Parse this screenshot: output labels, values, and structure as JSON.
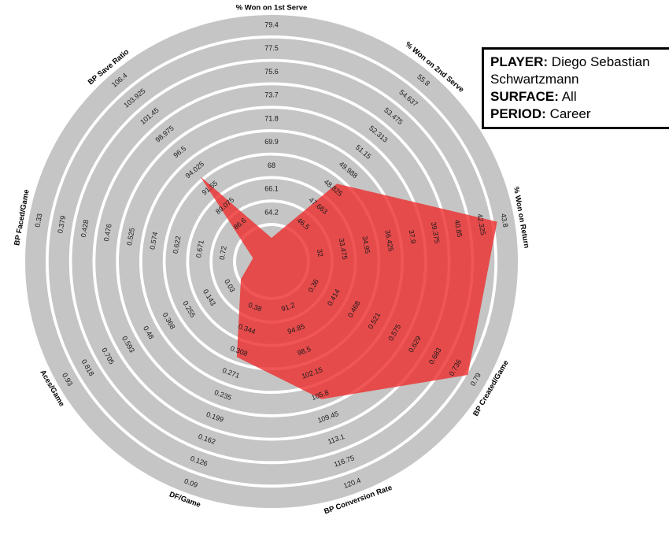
{
  "info_box": {
    "player_label": "PLAYER:",
    "player_value": "Diego Sebastian Schwartzmann",
    "surface_label": "SURFACE:",
    "surface_value": "All",
    "period_label": "PERIOD:",
    "period_value": "Career"
  },
  "chart_data": {
    "type": "radar",
    "title": "",
    "legend_position": "none",
    "grid": "concentric-bands",
    "colors": {
      "band": "#c5c5c5",
      "fill": "#ee2c2c",
      "fill_opacity": 0.8,
      "tick_text": "#1a1a1a",
      "title_text": "#000000"
    },
    "axes": [
      {
        "label": "% Won on 1st Serve",
        "ticks": [
          "64.2",
          "66.1",
          "68",
          "69.9",
          "71.8",
          "73.7",
          "75.6",
          "77.5",
          "79.4"
        ],
        "min": 64.2,
        "max": 79.4,
        "value": 63.5,
        "radius_frac": 0.1
      },
      {
        "label": "% Won on 2nd Serve",
        "ticks": [
          "46.5",
          "47.663",
          "48.825",
          "49.988",
          "51.15",
          "52.313",
          "53.475",
          "54.637",
          "55.8"
        ],
        "min": 46.5,
        "max": 55.8,
        "value": 49.1,
        "radius_frac": 0.43
      },
      {
        "label": "% Won on Return",
        "ticks": [
          "32",
          "33.475",
          "34.95",
          "36.425",
          "37.9",
          "39.375",
          "40.85",
          "42.325",
          "43.8"
        ],
        "min": 32,
        "max": 43.8,
        "value": 43.4,
        "radius_frac": 0.97
      },
      {
        "label": "BP Created/Game",
        "ticks": [
          "0.36",
          "0.414",
          "0.468",
          "0.521",
          "0.575",
          "0.629",
          "0.683",
          "0.736",
          "0.79"
        ],
        "min": 0.36,
        "max": 0.79,
        "value": 0.77,
        "radius_frac": 0.96
      },
      {
        "label": "BP Conversion Rate",
        "ticks": [
          "91.2",
          "94.85",
          "98.5",
          "102.15",
          "105.8",
          "109.45",
          "113.1",
          "116.75",
          "120.4"
        ],
        "min": 91.2,
        "max": 120.4,
        "value": 106.5,
        "radius_frac": 0.62
      },
      {
        "label": "DF/Game",
        "ticks": [
          "0.38",
          "0.344",
          "0.308",
          "0.271",
          "0.235",
          "0.199",
          "0.162",
          "0.126",
          "0.09"
        ],
        "min": 0.38,
        "max": 0.09,
        "value": 0.3,
        "radius_frac": 0.43
      },
      {
        "label": "Aces/Game",
        "ticks": [
          "0.03",
          "0.143",
          "0.255",
          "0.368",
          "0.48",
          "0.593",
          "0.705",
          "0.818",
          "0.93"
        ],
        "min": 0.03,
        "max": 0.93,
        "value": 0.05,
        "radius_frac": 0.15
      },
      {
        "label": "BP Faced/Game",
        "ticks": [
          "0.72",
          "0.671",
          "0.622",
          "0.574",
          "0.525",
          "0.476",
          "0.428",
          "0.379",
          "0.33"
        ],
        "min": 0.72,
        "max": 0.33,
        "value": 0.74,
        "radius_frac": 0.08
      },
      {
        "label": "BP Save Ratio",
        "ticks": [
          "86.6",
          "89.075",
          "91.55",
          "94.025",
          "96.5",
          "98.975",
          "101.45",
          "103.925",
          "106.4"
        ],
        "min": 86.6,
        "max": 106.4,
        "value": 93.2,
        "radius_frac": 0.47
      }
    ]
  }
}
